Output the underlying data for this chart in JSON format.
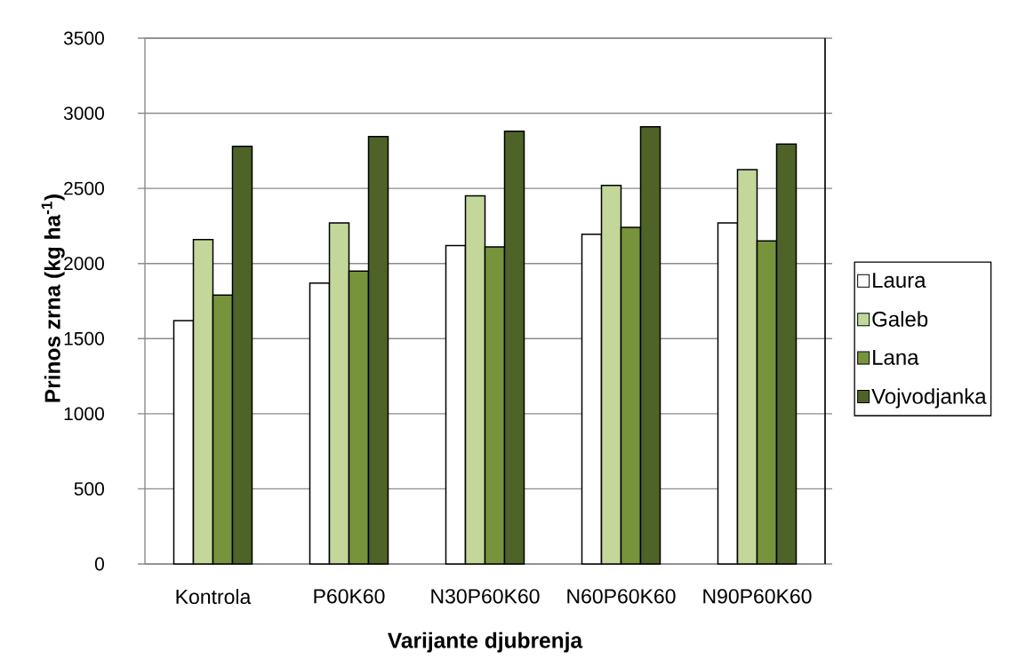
{
  "chart_data": {
    "type": "bar",
    "xlabel": "Varijante djubrenja",
    "ylabel": "Prinos zrna   (kg ha$^{-1}$)",
    "categories": [
      "Kontrola",
      "P60K60",
      "N30P60K60",
      "N60P60K60",
      "N90P60K60"
    ],
    "series": [
      {
        "name": "Laura",
        "color": "#ffffff",
        "values": [
          1620,
          1870,
          2120,
          2195,
          2270
        ]
      },
      {
        "name": "Galeb",
        "color": "#c4d79b",
        "values": [
          2160,
          2270,
          2450,
          2520,
          2625
        ]
      },
      {
        "name": "Lana",
        "color": "#77933c",
        "values": [
          1790,
          1950,
          2110,
          2240,
          2150
        ]
      },
      {
        "name": "Vojvodjanka",
        "color": "#4f6228",
        "values": [
          2780,
          2845,
          2880,
          2910,
          2795
        ]
      }
    ],
    "ylim": [
      0,
      3500
    ],
    "yticks": [
      0,
      500,
      1000,
      1500,
      2000,
      2500,
      3000,
      3500
    ],
    "grid": "y",
    "legend": "right"
  }
}
